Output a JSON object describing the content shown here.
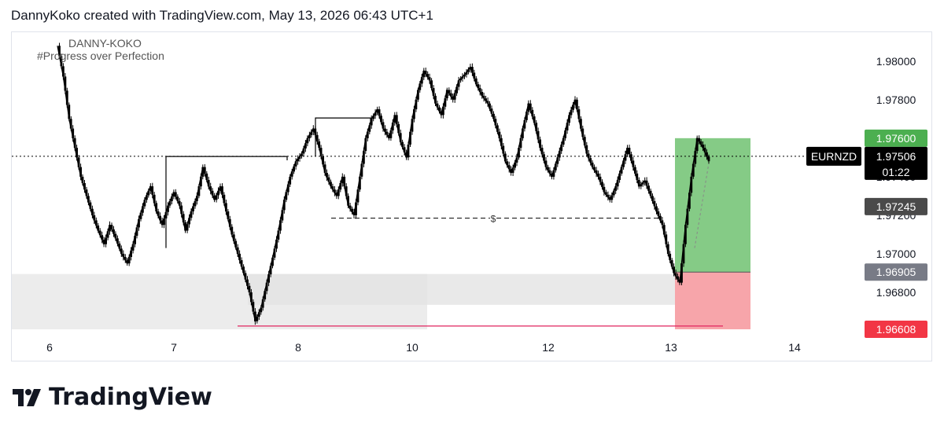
{
  "header": {
    "attribution": "DannyKoko created with TradingView.com, May 13, 2026 06:43 UTC+1"
  },
  "watermark": {
    "line1": "DANNY-KOKO",
    "line2": "#Progress over Perfection"
  },
  "footer": {
    "brand": "TradingView"
  },
  "colors": {
    "candle": "#000000",
    "target_zone": "#7ec880",
    "stop_zone": "#f7a5aa",
    "target_label": "#4caf50",
    "stop_label": "#f23645",
    "entry_label": "#787b86",
    "mid_label": "#4a4a4a",
    "grey_zone": "#ececec",
    "stop_line": "#e0245e"
  },
  "chart_data": {
    "type": "line",
    "symbol": "EURNZD",
    "title": "",
    "xlabel": "",
    "ylabel": "",
    "x_ticks": [
      "6",
      "7",
      "8",
      "10",
      "12",
      "13",
      "14"
    ],
    "y_ticks": [
      "1.98000",
      "1.97800",
      "1.97600",
      "1.97400",
      "1.97200",
      "1.97000",
      "1.96800"
    ],
    "ylim": [
      1.966,
      1.9815
    ],
    "grid": false,
    "price_labels": {
      "target": "1.97600",
      "current": "1.97506",
      "countdown": "01:22",
      "level": "1.97245",
      "entry": "1.96905",
      "stop": "1.96608"
    },
    "annotations": {
      "liquidity_marker": "$"
    },
    "series": [
      {
        "values": [
          1.9808,
          1.9792,
          1.977,
          1.9755,
          1.974,
          1.973,
          1.972,
          1.9712,
          1.9705,
          1.9715,
          1.9708,
          1.97,
          1.9695,
          1.9705,
          1.9718,
          1.9728,
          1.9735,
          1.9722,
          1.9715,
          1.9725,
          1.9732,
          1.9725,
          1.9712,
          1.9722,
          1.973,
          1.9745,
          1.9735,
          1.9728,
          1.9735,
          1.9722,
          1.971,
          1.97,
          1.969,
          1.968,
          1.9665,
          1.9672,
          1.9685,
          1.9698,
          1.9712,
          1.9728,
          1.974,
          1.9748,
          1.9752,
          1.976,
          1.9765,
          1.9755,
          1.9742,
          1.9735,
          1.973,
          1.974,
          1.9725,
          1.972,
          1.974,
          1.976,
          1.977,
          1.9775,
          1.9765,
          1.976,
          1.9772,
          1.9758,
          1.975,
          1.977,
          1.9785,
          1.9795,
          1.979,
          1.9778,
          1.9772,
          1.9785,
          1.978,
          1.979,
          1.9793,
          1.9797,
          1.9788,
          1.9782,
          1.9778,
          1.977,
          1.976,
          1.9748,
          1.9742,
          1.975,
          1.9765,
          1.9778,
          1.9768,
          1.9755,
          1.9745,
          1.974,
          1.975,
          1.976,
          1.9772,
          1.978,
          1.9765,
          1.9752,
          1.9745,
          1.974,
          1.9732,
          1.9728,
          1.9735,
          1.9745,
          1.9755,
          1.9745,
          1.9735,
          1.9738,
          1.973,
          1.9722,
          1.9715,
          1.97,
          1.969,
          1.9685,
          1.9715,
          1.974,
          1.976,
          1.9755,
          1.9748
        ]
      }
    ]
  }
}
